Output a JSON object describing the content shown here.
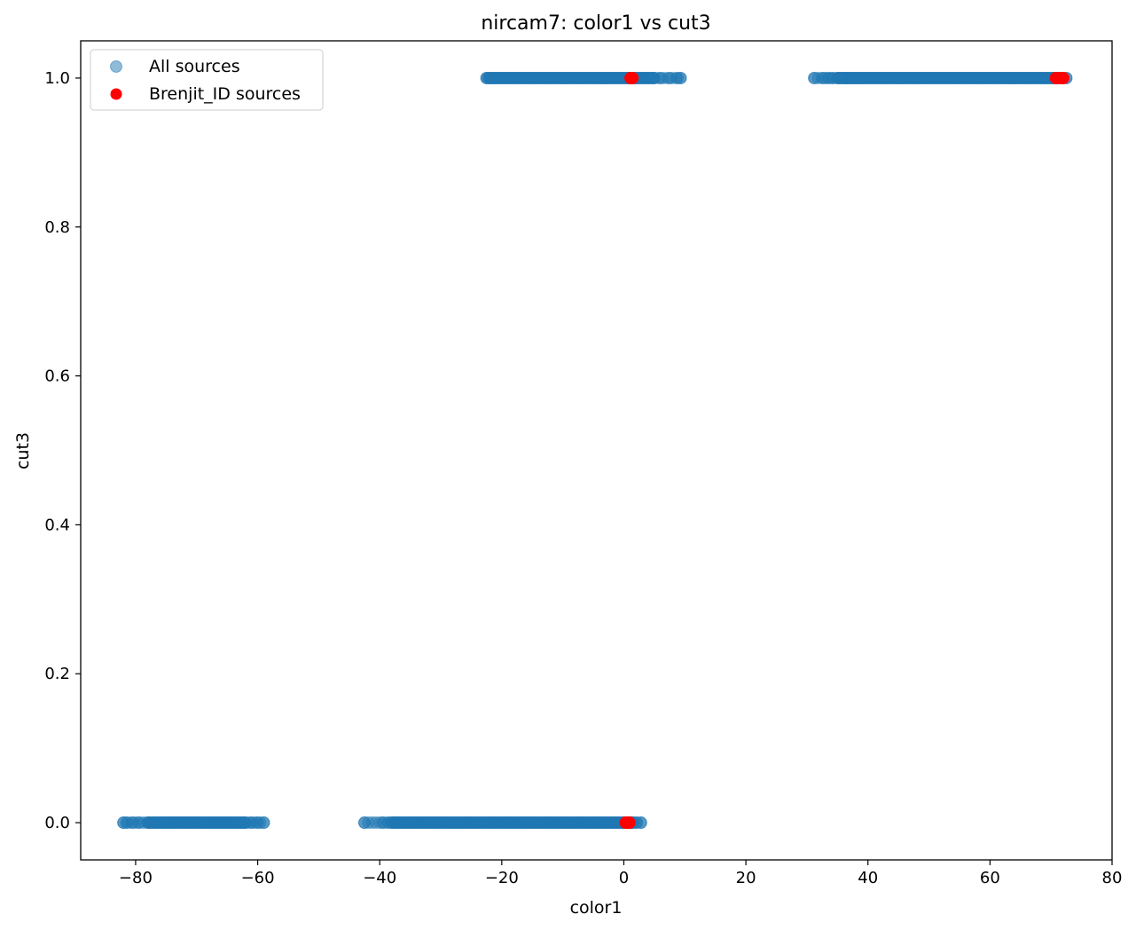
{
  "chart_data": {
    "type": "scatter",
    "title": "nircam7: color1 vs cut3",
    "xlabel": "color1",
    "ylabel": "cut3",
    "xlim": [
      -89,
      80
    ],
    "ylim": [
      -0.05,
      1.05
    ],
    "xticks": [
      -80,
      -60,
      -40,
      -20,
      0,
      20,
      40,
      60,
      80
    ],
    "yticks": [
      0.0,
      0.2,
      0.4,
      0.6,
      0.8,
      1.0
    ],
    "xtick_labels": [
      "−80",
      "−60",
      "−40",
      "−20",
      "0",
      "20",
      "40",
      "60",
      "80"
    ],
    "ytick_labels": [
      "0.0",
      "0.2",
      "0.4",
      "0.6",
      "0.8",
      "1.0"
    ],
    "grid": false,
    "legend_position": "top-left",
    "series": [
      {
        "name": "All sources",
        "color": "#1f77b4",
        "alpha": 0.5,
        "clusters": [
          {
            "y": 0,
            "x_range": [
              -82,
              -59
            ],
            "dense_range": [
              -78,
              -62
            ],
            "outliers": [
              -82,
              -81.5,
              -80.5,
              -79.5,
              -61,
              -60,
              -59
            ]
          },
          {
            "y": 0,
            "x_range": [
              -42.5,
              2.8
            ],
            "dense_range": [
              -38,
              1.5
            ],
            "outliers": [
              -42.5,
              -39.5,
              -38.5,
              2,
              2.8
            ]
          },
          {
            "y": 1,
            "x_range": [
              -22.5,
              9.3
            ],
            "dense_range": [
              -22,
              5
            ],
            "outliers": [
              -22.5,
              -3,
              6,
              7.5,
              8.8,
              9.3
            ]
          },
          {
            "y": 1,
            "x_range": [
              31.2,
              72.5
            ],
            "dense_range": [
              35,
              71
            ],
            "outliers": [
              31.2,
              32.7,
              33.5,
              34.2,
              36.5,
              38,
              72.5
            ]
          }
        ]
      },
      {
        "name": "Brenjit_ID sources",
        "color": "#ff0000",
        "alpha": 1.0,
        "points": [
          {
            "x": 0.3,
            "y": 0
          },
          {
            "x": 0.6,
            "y": 0
          },
          {
            "x": 0.9,
            "y": 0
          },
          {
            "x": 0.5,
            "y": 0
          },
          {
            "x": 1.1,
            "y": 1
          },
          {
            "x": 1.4,
            "y": 1
          },
          {
            "x": 70.8,
            "y": 1
          },
          {
            "x": 71.3,
            "y": 1
          },
          {
            "x": 71.8,
            "y": 1
          },
          {
            "x": 72.0,
            "y": 1
          }
        ]
      }
    ]
  }
}
